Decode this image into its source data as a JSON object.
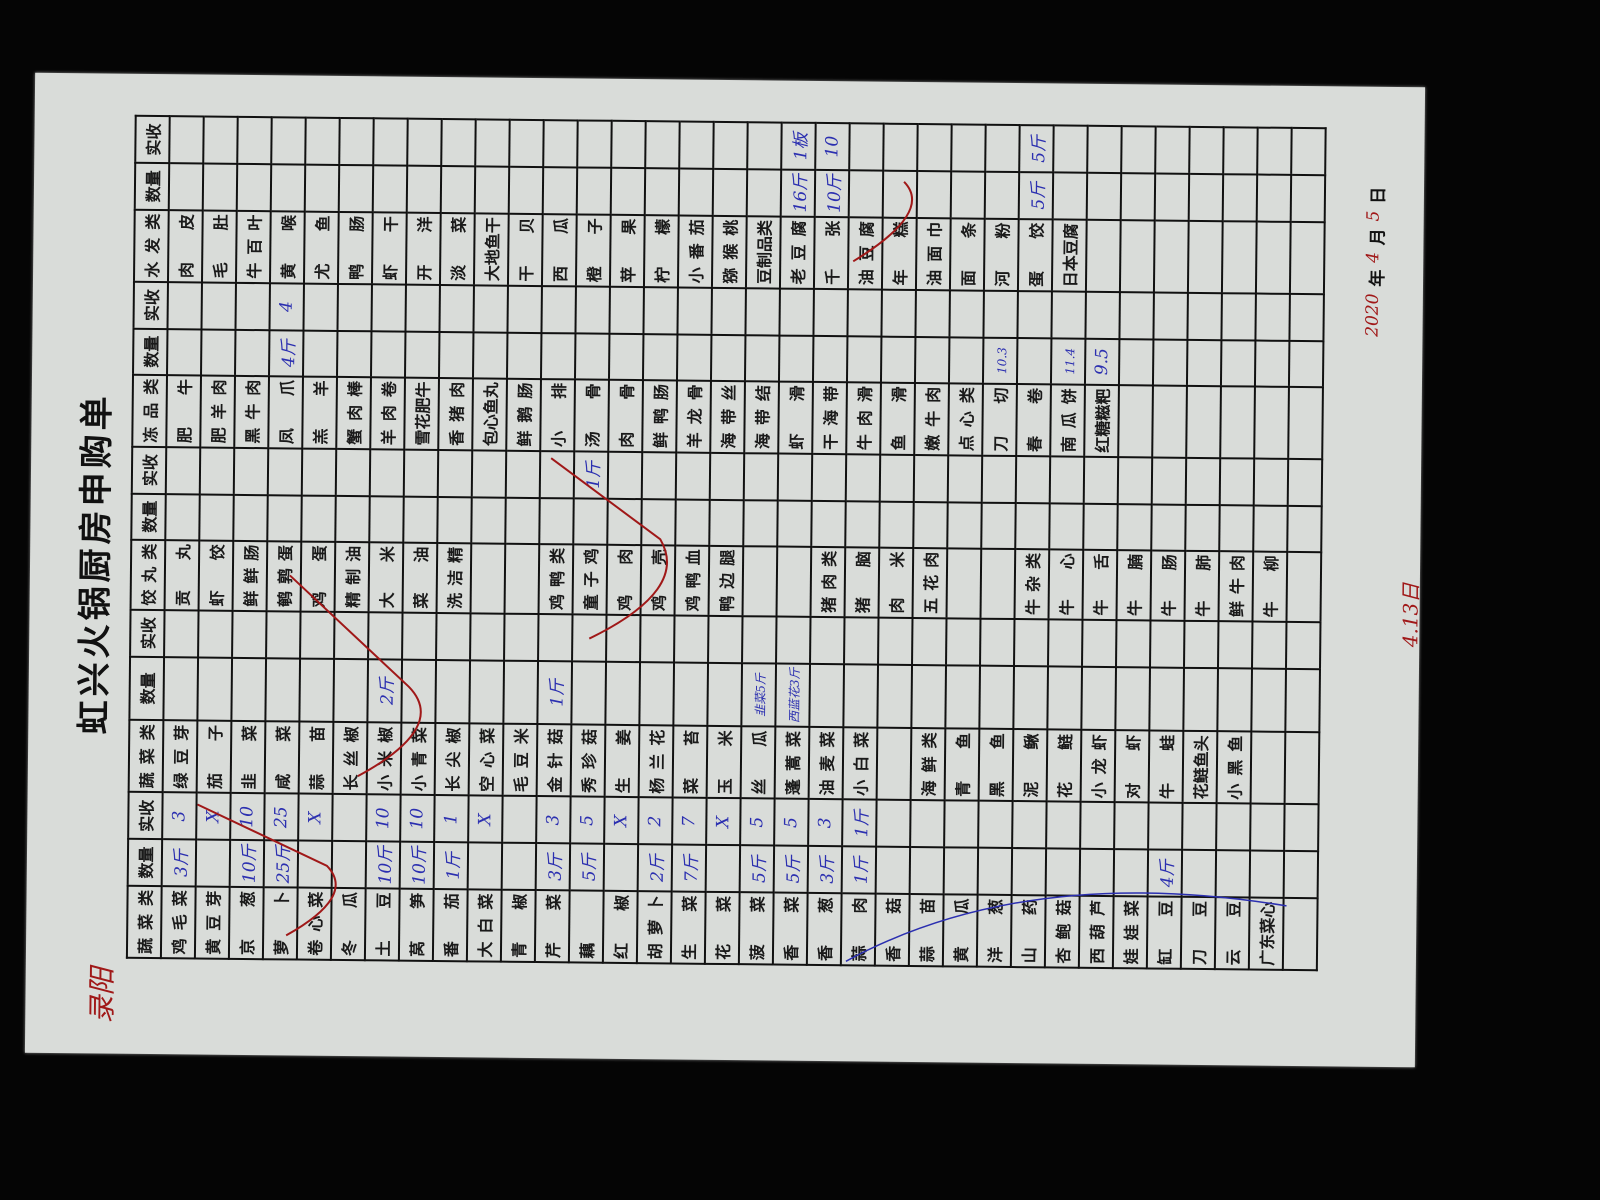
{
  "title": "虹兴火锅厨房申购单",
  "header": [
    "蔬菜类",
    "数量",
    "实收",
    "蔬菜类",
    "数量",
    "实收",
    "饺丸类",
    "数量",
    "实收",
    "冻品类",
    "数量",
    "实收",
    "水发类",
    "数量",
    "实收"
  ],
  "rows": [
    [
      [
        "鸡毛菜",
        "3斤",
        "3"
      ],
      [
        "绿豆芽",
        "",
        ""
      ],
      [
        "贡丸",
        "",
        ""
      ],
      [
        "肥牛",
        "",
        ""
      ],
      [
        "肉皮",
        "",
        ""
      ]
    ],
    [
      [
        "黄豆芽",
        "",
        "X"
      ],
      [
        "茄子",
        "",
        ""
      ],
      [
        "虾饺",
        "",
        ""
      ],
      [
        "肥羊肉",
        "",
        ""
      ],
      [
        "毛肚",
        "",
        ""
      ]
    ],
    [
      [
        "京葱",
        "10斤",
        "10"
      ],
      [
        "韭菜",
        "",
        ""
      ],
      [
        "鲜鲜肠",
        "",
        ""
      ],
      [
        "黑牛肉",
        "",
        ""
      ],
      [
        "牛百叶",
        "",
        ""
      ]
    ],
    [
      [
        "萝卜",
        "25斤",
        "25"
      ],
      [
        "咸菜",
        "",
        ""
      ],
      [
        "鹌鹑蛋",
        "",
        ""
      ],
      [
        "凤爪",
        "4斤",
        "4"
      ],
      [
        "黄喉",
        "",
        ""
      ]
    ],
    [
      [
        "卷心菜",
        "",
        "X"
      ],
      [
        "蒜苗",
        "",
        ""
      ],
      [
        "鸡蛋",
        "",
        ""
      ],
      [
        "羔羊",
        "",
        ""
      ],
      [
        "尤鱼",
        "",
        ""
      ]
    ],
    [
      [
        "冬瓜",
        "",
        ""
      ],
      [
        "长丝椒",
        "",
        ""
      ],
      [
        "精制油",
        "",
        ""
      ],
      [
        "蟹肉棒",
        "",
        ""
      ],
      [
        "鸭肠",
        "",
        ""
      ]
    ],
    [
      [
        "土豆",
        "10斤",
        "10"
      ],
      [
        "小米椒",
        "2斤",
        ""
      ],
      [
        "大米",
        "",
        ""
      ],
      [
        "羊肉卷",
        "",
        ""
      ],
      [
        "虾干",
        "",
        ""
      ]
    ],
    [
      [
        "莴笋",
        "10斤",
        "10"
      ],
      [
        "小青菜",
        "",
        ""
      ],
      [
        "菜油",
        "",
        ""
      ],
      [
        "雪花肥牛",
        "",
        ""
      ],
      [
        "开洋",
        "",
        ""
      ]
    ],
    [
      [
        "番茄",
        "1斤",
        "1"
      ],
      [
        "长尖椒",
        "",
        ""
      ],
      [
        "洗洁精",
        "",
        ""
      ],
      [
        "香猪肉",
        "",
        ""
      ],
      [
        "淡菜",
        "",
        ""
      ]
    ],
    [
      [
        "大白菜",
        "",
        "X"
      ],
      [
        "空心菜",
        "",
        ""
      ],
      [
        "",
        "",
        ""
      ],
      [
        "包心鱼丸",
        "",
        ""
      ],
      [
        "大地鱼干",
        "",
        ""
      ]
    ],
    [
      [
        "青椒",
        "",
        ""
      ],
      [
        "毛豆米",
        "",
        ""
      ],
      [
        "",
        "",
        ""
      ],
      [
        "鲜鹅肠",
        "",
        ""
      ],
      [
        "干贝",
        "",
        ""
      ]
    ],
    [
      [
        "芹菜",
        "3斤",
        "3"
      ],
      [
        "金针菇",
        "1斤",
        ""
      ],
      [
        "鸡鸭类",
        "",
        ""
      ],
      [
        "小排",
        "",
        ""
      ],
      [
        "西瓜",
        "",
        ""
      ]
    ],
    [
      [
        "藕",
        "5斤",
        "5"
      ],
      [
        "秀珍菇",
        "",
        ""
      ],
      [
        "童子鸡",
        "",
        "1斤"
      ],
      [
        "汤骨",
        "",
        ""
      ],
      [
        "橙子",
        "",
        ""
      ]
    ],
    [
      [
        "红椒",
        "",
        "X"
      ],
      [
        "生姜",
        "",
        ""
      ],
      [
        "鸡肉",
        "",
        ""
      ],
      [
        "肉骨",
        "",
        ""
      ],
      [
        "苹果",
        "",
        ""
      ]
    ],
    [
      [
        "胡萝卜",
        "2斤",
        "2"
      ],
      [
        "杨兰花",
        "",
        ""
      ],
      [
        "鸡壳",
        "",
        ""
      ],
      [
        "鲜鸭肠",
        "",
        ""
      ],
      [
        "柠檬",
        "",
        ""
      ]
    ],
    [
      [
        "生菜",
        "7斤",
        "7"
      ],
      [
        "菜苔",
        "",
        ""
      ],
      [
        "鸡鸭血",
        "",
        ""
      ],
      [
        "羊龙骨",
        "",
        ""
      ],
      [
        "小番茄",
        "",
        ""
      ]
    ],
    [
      [
        "花菜",
        "",
        "X"
      ],
      [
        "玉米",
        "",
        ""
      ],
      [
        "鸭边腿",
        "",
        ""
      ],
      [
        "海带丝",
        "",
        ""
      ],
      [
        "猕猴桃",
        "",
        ""
      ]
    ],
    [
      [
        "菠菜",
        "5斤",
        "5"
      ],
      [
        "丝瓜",
        "韭菜5斤",
        ""
      ],
      [
        "",
        "",
        ""
      ],
      [
        "海带结",
        "",
        ""
      ],
      [
        "豆制品类",
        "",
        ""
      ]
    ],
    [
      [
        "香菜",
        "5斤",
        "5"
      ],
      [
        "蓬蒿菜",
        "西蓝花3斤",
        ""
      ],
      [
        "",
        "",
        ""
      ],
      [
        "虾滑",
        "",
        ""
      ],
      [
        "老豆腐",
        "16斤",
        "1板"
      ]
    ],
    [
      [
        "香葱",
        "3斤",
        "3"
      ],
      [
        "油麦菜",
        "",
        ""
      ],
      [
        "猪肉类",
        "",
        ""
      ],
      [
        "干海带",
        "",
        ""
      ],
      [
        "千张",
        "10斤",
        "10"
      ]
    ],
    [
      [
        "蒜肉",
        "1斤",
        "1斤"
      ],
      [
        "小白菜",
        "",
        ""
      ],
      [
        "猪脑",
        "",
        ""
      ],
      [
        "牛肉滑",
        "",
        ""
      ],
      [
        "油豆腐",
        "",
        ""
      ]
    ],
    [
      [
        "香菇",
        "",
        ""
      ],
      [
        "",
        "",
        ""
      ],
      [
        "肉米",
        "",
        ""
      ],
      [
        "鱼滑",
        "",
        ""
      ],
      [
        "年糕",
        "",
        ""
      ]
    ],
    [
      [
        "蒜苗",
        "",
        ""
      ],
      [
        "海鲜类",
        "",
        ""
      ],
      [
        "五花肉",
        "",
        ""
      ],
      [
        "嫩牛肉",
        "",
        ""
      ],
      [
        "油面巾",
        "",
        ""
      ]
    ],
    [
      [
        "黄瓜",
        "",
        ""
      ],
      [
        "青鱼",
        "",
        ""
      ],
      [
        "",
        "",
        ""
      ],
      [
        "点心类",
        "",
        ""
      ],
      [
        "面条",
        "",
        ""
      ]
    ],
    [
      [
        "洋葱",
        "",
        ""
      ],
      [
        "黑鱼",
        "",
        ""
      ],
      [
        "",
        "",
        ""
      ],
      [
        "刀切",
        "10.3",
        ""
      ],
      [
        "河粉",
        "",
        ""
      ]
    ],
    [
      [
        "山药",
        "",
        ""
      ],
      [
        "泥鳅",
        "",
        ""
      ],
      [
        "牛杂类",
        "",
        ""
      ],
      [
        "春卷",
        "",
        ""
      ],
      [
        "蛋饺",
        "5斤",
        "5斤"
      ]
    ],
    [
      [
        "杏鲍菇",
        "",
        ""
      ],
      [
        "花鲢",
        "",
        ""
      ],
      [
        "牛心",
        "",
        ""
      ],
      [
        "南瓜饼",
        "11.4",
        ""
      ],
      [
        "日本豆腐",
        "",
        ""
      ]
    ],
    [
      [
        "西葫芦",
        "",
        ""
      ],
      [
        "小龙虾",
        "",
        ""
      ],
      [
        "牛舌",
        "",
        ""
      ],
      [
        "红糖糍粑",
        "9.5",
        ""
      ],
      [
        "",
        "",
        ""
      ]
    ],
    [
      [
        "娃娃菜",
        "",
        ""
      ],
      [
        "对虾",
        "",
        ""
      ],
      [
        "牛腩",
        "",
        ""
      ],
      [
        "",
        "",
        ""
      ],
      [
        "",
        "",
        ""
      ]
    ],
    [
      [
        "缸豆",
        "4斤",
        ""
      ],
      [
        "牛蛙",
        "",
        ""
      ],
      [
        "牛肠",
        "",
        ""
      ],
      [
        "",
        "",
        ""
      ],
      [
        "",
        "",
        ""
      ]
    ],
    [
      [
        "刀豆",
        "",
        ""
      ],
      [
        "花鲢鱼头",
        "",
        ""
      ],
      [
        "牛肺",
        "",
        ""
      ],
      [
        "",
        "",
        ""
      ],
      [
        "",
        "",
        ""
      ]
    ],
    [
      [
        "云豆",
        "",
        ""
      ],
      [
        "小黑鱼",
        "",
        ""
      ],
      [
        "鲜牛肉",
        "",
        ""
      ],
      [
        "",
        "",
        ""
      ],
      [
        "",
        "",
        ""
      ]
    ],
    [
      [
        "广东菜心",
        "",
        ""
      ],
      [
        "",
        "",
        ""
      ],
      [
        "牛柳",
        "",
        ""
      ],
      [
        "",
        "",
        ""
      ],
      [
        "",
        "",
        ""
      ]
    ],
    [
      [
        "",
        "",
        ""
      ],
      [
        "",
        "",
        ""
      ],
      [
        "",
        "",
        ""
      ],
      [
        "",
        "",
        ""
      ],
      [
        "",
        "",
        ""
      ]
    ]
  ],
  "date": {
    "year": "2020",
    "year_label": "年",
    "month": "4",
    "month_label": "月",
    "day": "5",
    "day_label": "日"
  },
  "arrival_note": "4.13日",
  "signature": "录阳",
  "colors": {
    "paper": "#d9dcd9",
    "ink_blue": "#2b2fb0",
    "ink_red": "#a01818",
    "background": "#050505"
  }
}
